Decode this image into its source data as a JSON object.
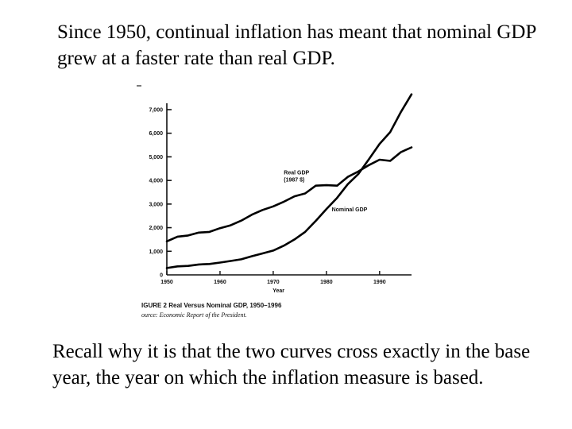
{
  "slide": {
    "top_text": "Since 1950, continual inflation has meant that nominal GDP grew at a faster rate than real GDP.",
    "bottom_text": "Recall why it is that the two curves cross exactly in the base year, the year on which the inflation measure is based."
  },
  "chart_data": {
    "type": "line",
    "title": "IGURE 2  Real Versus Nominal GDP, 1950–1996",
    "source": "ource: Economic Report of the President.",
    "xlabel": "Year",
    "ylabel": "",
    "xlim": [
      1950,
      1996
    ],
    "ylim": [
      0,
      7000
    ],
    "x_ticks": [
      1950,
      1960,
      1970,
      1980,
      1990
    ],
    "x_tick_labels": [
      "1950",
      "1960",
      "1970",
      "1980",
      "1990"
    ],
    "y_ticks": [
      0,
      1000,
      2000,
      3000,
      4000,
      5000,
      6000,
      7000
    ],
    "y_tick_labels": [
      "0",
      "1,000",
      "2,000",
      "3,000",
      "4,000",
      "5,000",
      "6,000",
      "7,000"
    ],
    "grid": false,
    "series": [
      {
        "name": "Real GDP (1987 $)",
        "annotation": [
          "Real GDP",
          "(1987 $)"
        ],
        "x": [
          1950,
          1952,
          1954,
          1956,
          1958,
          1960,
          1962,
          1964,
          1966,
          1968,
          1970,
          1972,
          1974,
          1976,
          1978,
          1980,
          1982,
          1984,
          1986,
          1988,
          1990,
          1992,
          1994,
          1996
        ],
        "values": [
          1420,
          1620,
          1670,
          1790,
          1820,
          1980,
          2100,
          2300,
          2550,
          2750,
          2900,
          3100,
          3330,
          3450,
          3780,
          3800,
          3780,
          4150,
          4380,
          4650,
          4880,
          4830,
          5200,
          5400
        ]
      },
      {
        "name": "Nominal GDP",
        "annotation": [
          "Nominal GDP"
        ],
        "x": [
          1950,
          1952,
          1954,
          1956,
          1958,
          1960,
          1962,
          1964,
          1966,
          1968,
          1970,
          1972,
          1974,
          1976,
          1978,
          1980,
          1982,
          1984,
          1986,
          1988,
          1990,
          1992,
          1994,
          1996
        ],
        "values": [
          290,
          360,
          380,
          440,
          460,
          520,
          590,
          660,
          790,
          910,
          1030,
          1240,
          1500,
          1820,
          2290,
          2790,
          3260,
          3840,
          4270,
          4900,
          5550,
          6050,
          6900,
          7650
        ]
      }
    ]
  }
}
